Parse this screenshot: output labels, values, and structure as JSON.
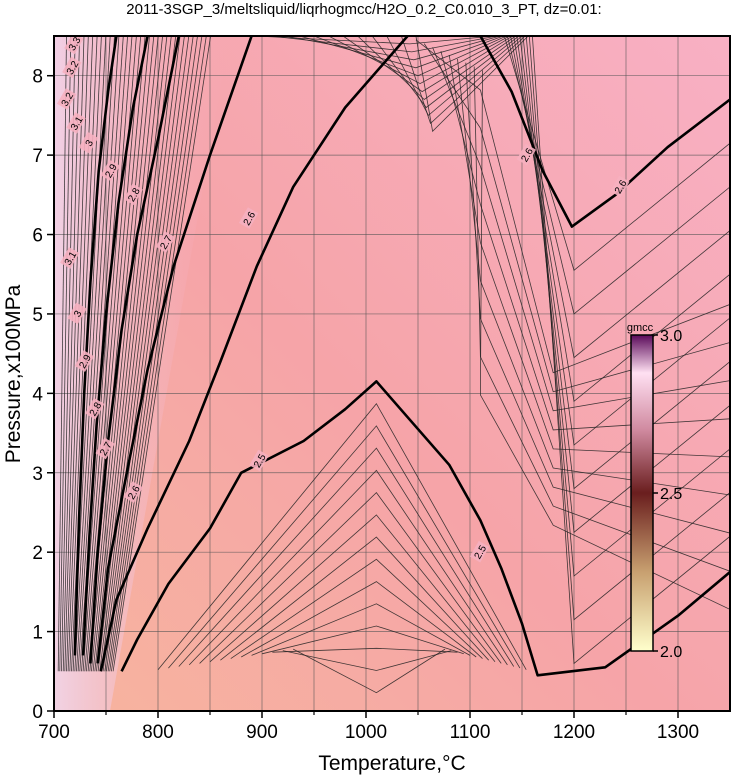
{
  "chart_data": {
    "type": "contour",
    "title": "2011-3SGP_3/meltsliquid/liqrhogmcc/H2O_0.2_C0.010_3_PT, dz=0.01:",
    "xlabel": "Temperature,°C",
    "ylabel": "Pressure,x100MPa",
    "xlim": [
      700,
      1350
    ],
    "ylim": [
      0,
      8.5
    ],
    "x_ticks": [
      "700",
      "800",
      "900",
      "1000",
      "1100",
      "1200",
      "1300"
    ],
    "y_ticks": [
      "0",
      "1",
      "2",
      "3",
      "4",
      "5",
      "6",
      "7",
      "8"
    ],
    "grid": true,
    "colorbar": {
      "label": "gmcc",
      "range": [
        2.0,
        3.0
      ],
      "tick_labels": [
        "3.0",
        "2.5",
        "2.0"
      ],
      "colors": [
        "#ffffcc",
        "#c8a070",
        "#6a1e1e",
        "#d08aa0",
        "#ffe0f2",
        "#5a0a5a"
      ],
      "placement": "right-inside"
    },
    "bold_contours": [
      {
        "level": "2.5",
        "points": [
          [
            765,
            0.5
          ],
          [
            780,
            0.9
          ],
          [
            810,
            1.6
          ],
          [
            850,
            2.3
          ],
          [
            880,
            3.0
          ],
          [
            940,
            3.4
          ],
          [
            980,
            3.8
          ],
          [
            1010,
            4.15
          ],
          [
            1040,
            3.7
          ],
          [
            1080,
            3.1
          ],
          [
            1110,
            2.4
          ],
          [
            1130,
            1.8
          ],
          [
            1150,
            1.1
          ],
          [
            1165,
            0.45
          ],
          [
            1230,
            0.55
          ],
          [
            1300,
            1.2
          ],
          [
            1350,
            1.75
          ]
        ]
      },
      {
        "level": "2.6",
        "points": [
          [
            745,
            0.5
          ],
          [
            760,
            1.4
          ],
          [
            790,
            2.3
          ],
          [
            830,
            3.4
          ],
          [
            860,
            4.4
          ],
          [
            895,
            5.6
          ],
          [
            930,
            6.6
          ],
          [
            980,
            7.6
          ],
          [
            1040,
            8.5
          ]
        ]
      },
      {
        "level": "2.6",
        "points": [
          [
            1110,
            8.5
          ],
          [
            1140,
            7.8
          ],
          [
            1170,
            6.8
          ],
          [
            1198,
            6.1
          ],
          [
            1240,
            6.5
          ],
          [
            1290,
            7.1
          ],
          [
            1350,
            7.7
          ]
        ]
      },
      {
        "level": "2.7",
        "points": [
          [
            742,
            0.6
          ],
          [
            752,
            1.8
          ],
          [
            770,
            3.0
          ],
          [
            790,
            4.3
          ],
          [
            815,
            5.6
          ],
          [
            850,
            7.0
          ],
          [
            890,
            8.5
          ]
        ]
      },
      {
        "level": "2.8",
        "points": [
          [
            735,
            0.6
          ],
          [
            742,
            2.0
          ],
          [
            752,
            3.4
          ],
          [
            765,
            4.8
          ],
          [
            780,
            6.0
          ],
          [
            800,
            7.2
          ],
          [
            820,
            8.5
          ]
        ]
      },
      {
        "level": "2.9",
        "points": [
          [
            728,
            0.7
          ],
          [
            734,
            2.2
          ],
          [
            741,
            3.6
          ],
          [
            750,
            5.0
          ],
          [
            762,
            6.4
          ],
          [
            776,
            7.6
          ],
          [
            790,
            8.5
          ]
        ]
      },
      {
        "level": "3.0",
        "points": [
          [
            720,
            0.7
          ],
          [
            724,
            2.4
          ],
          [
            729,
            4.0
          ],
          [
            735,
            5.4
          ],
          [
            743,
            6.8
          ],
          [
            752,
            7.8
          ],
          [
            760,
            8.5
          ]
        ]
      }
    ],
    "contour_labels": [
      {
        "text": "2.5",
        "x": 1110,
        "y": 2.0
      },
      {
        "text": "2.5",
        "x": 898,
        "y": 3.15
      },
      {
        "text": "2.6",
        "x": 777,
        "y": 2.75
      },
      {
        "text": "2.6",
        "x": 888,
        "y": 6.2
      },
      {
        "text": "2.6",
        "x": 1155,
        "y": 7.0
      },
      {
        "text": "2.6",
        "x": 1245,
        "y": 6.6
      },
      {
        "text": "2.7",
        "x": 750,
        "y": 3.3
      },
      {
        "text": "2.7",
        "x": 808,
        "y": 5.9
      },
      {
        "text": "2.8",
        "x": 740,
        "y": 3.8
      },
      {
        "text": "2.8",
        "x": 777,
        "y": 6.5
      },
      {
        "text": "2.9",
        "x": 730,
        "y": 4.4
      },
      {
        "text": "2.9",
        "x": 755,
        "y": 6.8
      },
      {
        "text": "3",
        "x": 723,
        "y": 5.0
      },
      {
        "text": "3",
        "x": 734,
        "y": 7.15
      },
      {
        "text": "3.1",
        "x": 716,
        "y": 5.7
      },
      {
        "text": "3.1",
        "x": 722,
        "y": 7.4
      },
      {
        "text": "3.2",
        "x": 713,
        "y": 7.7
      },
      {
        "text": "3.2",
        "x": 718,
        "y": 8.1
      },
      {
        "text": "3.3",
        "x": 720,
        "y": 8.4
      }
    ]
  }
}
